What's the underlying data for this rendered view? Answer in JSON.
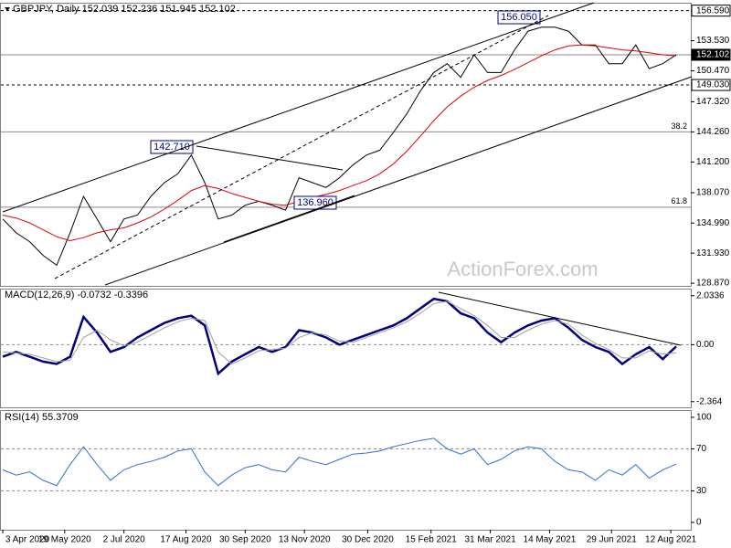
{
  "chart_data": [
    {
      "type": "line",
      "title": "GBPJPY, Daily  152.039 152.236 151.945 152.102",
      "watermark": "ActionForex.com",
      "x": [
        0,
        10,
        20,
        30,
        40,
        50,
        60,
        70,
        80,
        90,
        100,
        110,
        120,
        130,
        140,
        150,
        160,
        170,
        180,
        190,
        200,
        210,
        220,
        230,
        240,
        250,
        260,
        270,
        280,
        290,
        300,
        310,
        320,
        330,
        340,
        350,
        360,
        370,
        380,
        390,
        400,
        410,
        420,
        430,
        440,
        450,
        460,
        470,
        480,
        490,
        500
      ],
      "xlim": [
        0,
        500
      ],
      "ylim": [
        128.6,
        157.3
      ],
      "yticks": [
        {
          "value": 156.59,
          "label": "156.590"
        },
        {
          "value": 153.53,
          "label": "153.530"
        },
        {
          "value": 152.102,
          "label": "152.102"
        },
        {
          "value": 150.47,
          "label": "150.470"
        },
        {
          "value": 149.03,
          "label": "149.030"
        },
        {
          "value": 147.32,
          "label": "147.320"
        },
        {
          "value": 144.26,
          "label": "144.260"
        },
        {
          "value": 141.2,
          "label": "141.200"
        },
        {
          "value": 138.07,
          "label": "138.070"
        },
        {
          "value": 134.99,
          "label": "134.990"
        },
        {
          "value": 131.93,
          "label": "131.930"
        },
        {
          "value": 128.87,
          "label": "128.870"
        }
      ],
      "levels": [
        {
          "value": 156.59,
          "style": "dashed",
          "box": "light"
        },
        {
          "value": 152.102,
          "style": "solid",
          "box": "dark"
        },
        {
          "value": 149.03,
          "style": "dashed",
          "box": "light"
        },
        {
          "value": 144.26,
          "style": "solid",
          "label": "38.2"
        },
        {
          "value": 136.6,
          "style": "solid",
          "label": "61.8"
        }
      ],
      "annotations": [
        "142.710",
        "156.050",
        "136.960"
      ],
      "series": [
        {
          "color": "#000000",
          "values": [
            135.4,
            134.0,
            133.1,
            131.7,
            130.7,
            134.0,
            137.7,
            135.4,
            133.1,
            135.4,
            135.8,
            137.7,
            139.1,
            140.0,
            141.9,
            139.1,
            135.4,
            135.8,
            136.8,
            137.2,
            136.8,
            136.3,
            139.6,
            139.1,
            138.6,
            139.6,
            140.9,
            141.9,
            142.4,
            144.2,
            146.1,
            148.4,
            150.3,
            151.2,
            149.8,
            152.1,
            150.3,
            150.3,
            152.6,
            154.5,
            154.9,
            154.9,
            154.5,
            153.1,
            153.1,
            151.2,
            151.2,
            153.1,
            150.7,
            151.2,
            152.102
          ]
        },
        {
          "color": "#e00000",
          "values": [
            135.8,
            135.5,
            135.0,
            134.3,
            133.6,
            133.2,
            133.5,
            134.0,
            134.3,
            134.5,
            135.0,
            135.6,
            136.4,
            137.3,
            138.3,
            138.8,
            138.5,
            138.0,
            137.6,
            137.2,
            136.9,
            136.8,
            137.2,
            137.6,
            137.9,
            138.3,
            138.8,
            139.3,
            140.0,
            141.0,
            142.3,
            143.8,
            145.4,
            146.8,
            147.9,
            148.8,
            149.5,
            150.0,
            150.6,
            151.3,
            152.0,
            152.6,
            153.0,
            153.1,
            153.0,
            152.8,
            152.6,
            152.5,
            152.3,
            152.1,
            152.0
          ]
        }
      ]
    },
    {
      "type": "line",
      "title": "MACD(12,26,9) -0.0732 -0.3396",
      "x": [
        0,
        10,
        20,
        30,
        40,
        50,
        60,
        70,
        80,
        90,
        100,
        110,
        120,
        130,
        140,
        150,
        160,
        170,
        180,
        190,
        200,
        210,
        220,
        230,
        240,
        250,
        260,
        270,
        280,
        290,
        300,
        310,
        320,
        330,
        340,
        350,
        360,
        370,
        380,
        390,
        400,
        410,
        420,
        430,
        440,
        450,
        460,
        470,
        480,
        490,
        500
      ],
      "xlim": [
        0,
        500
      ],
      "ylim": [
        -2.6,
        2.25
      ],
      "yticks": [
        2.0336,
        {
          "value": 0,
          "label": "0.00"
        },
        -2.364
      ],
      "series": [
        {
          "color": "#000080",
          "width": 2.5,
          "values": [
            -0.5,
            -0.3,
            -0.5,
            -0.7,
            -0.8,
            -0.5,
            1.15,
            0.5,
            -0.3,
            -0.1,
            0.3,
            0.6,
            0.9,
            1.1,
            1.2,
            0.8,
            -1.2,
            -0.7,
            -0.4,
            -0.1,
            -0.3,
            -0.1,
            0.6,
            0.5,
            0.3,
            0.0,
            0.2,
            0.4,
            0.6,
            0.8,
            1.1,
            1.5,
            1.9,
            1.8,
            1.3,
            1.1,
            0.5,
            0.1,
            0.5,
            0.8,
            1.0,
            1.1,
            0.7,
            0.2,
            -0.1,
            -0.3,
            -0.8,
            -0.4,
            -0.1,
            -0.6,
            -0.0732
          ]
        },
        {
          "color": "#a0a0a0",
          "width": 1,
          "values": [
            -0.3,
            -0.35,
            -0.4,
            -0.55,
            -0.7,
            -0.65,
            0.3,
            0.6,
            0.2,
            -0.05,
            0.1,
            0.4,
            0.7,
            0.95,
            1.1,
            1.0,
            -0.3,
            -0.8,
            -0.55,
            -0.25,
            -0.2,
            -0.15,
            0.3,
            0.5,
            0.4,
            0.15,
            0.1,
            0.3,
            0.5,
            0.7,
            0.95,
            1.3,
            1.7,
            1.8,
            1.5,
            1.2,
            0.8,
            0.3,
            0.3,
            0.6,
            0.85,
            1.0,
            0.85,
            0.4,
            0.05,
            -0.2,
            -0.55,
            -0.55,
            -0.25,
            -0.4,
            -0.3396
          ]
        }
      ]
    },
    {
      "type": "line",
      "title": "RSI(14) 55.3709",
      "x": [
        0,
        10,
        20,
        30,
        40,
        50,
        60,
        70,
        80,
        90,
        100,
        110,
        120,
        130,
        140,
        150,
        160,
        170,
        180,
        190,
        200,
        210,
        220,
        230,
        240,
        250,
        260,
        270,
        280,
        290,
        300,
        310,
        320,
        330,
        340,
        350,
        360,
        370,
        380,
        390,
        400,
        410,
        420,
        430,
        440,
        450,
        460,
        470,
        480,
        490,
        500
      ],
      "xlim": [
        0,
        500
      ],
      "ylim": [
        -7,
        106
      ],
      "yticks": [
        100,
        70,
        30,
        0
      ],
      "dashed_ticks": [
        70,
        30
      ],
      "xticks": [
        {
          "value": 0,
          "label": "3 Apr 2020"
        },
        {
          "value": 46,
          "label": "19 May 2020"
        },
        {
          "value": 90,
          "label": "2 Jul 2020"
        },
        {
          "value": 136,
          "label": "17 Aug 2020"
        },
        {
          "value": 180,
          "label": "30 Sep 2020"
        },
        {
          "value": 224,
          "label": "13 Nov 2020"
        },
        {
          "value": 271,
          "label": "30 Dec 2020"
        },
        {
          "value": 318,
          "label": "15 Feb 2021"
        },
        {
          "value": 362,
          "label": "31 Mar 2021"
        },
        {
          "value": 406,
          "label": "14 May 2021"
        },
        {
          "value": 452,
          "label": "29 Jun 2021"
        },
        {
          "value": 496,
          "label": "12 Aug 2021"
        }
      ],
      "color": "#2f6fd0",
      "values": [
        50,
        45,
        48,
        40,
        35,
        55,
        72,
        55,
        40,
        50,
        55,
        58,
        62,
        68,
        70,
        48,
        35,
        45,
        52,
        55,
        50,
        48,
        62,
        58,
        55,
        60,
        65,
        66,
        68,
        72,
        75,
        78,
        80,
        70,
        65,
        70,
        55,
        60,
        68,
        72,
        70,
        58,
        50,
        48,
        40,
        50,
        45,
        55,
        42,
        50,
        55.3709
      ]
    }
  ]
}
